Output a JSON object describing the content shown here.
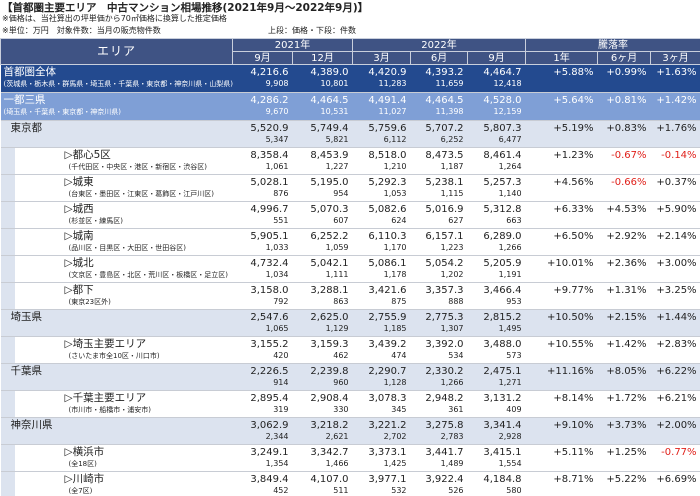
{
  "header": {
    "title": "【首都圏主要エリア　中古マンション相場推移(2021年9月～2022年9月)】",
    "notes": [
      "※価格は、当社算出の坪単価から70㎡価格に換算した推定価格",
      "※単位：万円　対象件数：当月の販売物件数"
    ],
    "layer_note": "上段：価格・下段：件数"
  },
  "table": {
    "columns": {
      "area": "エリア",
      "years": [
        {
          "label": "2021年",
          "months": [
            "9月",
            "12月"
          ]
        },
        {
          "label": "2022年",
          "months": [
            "3月",
            "6月",
            "9月"
          ]
        }
      ],
      "change": {
        "label": "騰落率",
        "periods": [
          "1年",
          "6ヶ月",
          "3ヶ月"
        ]
      }
    },
    "rows": [
      {
        "level": "total",
        "name": "首都圏全体",
        "sub": "(茨城県・栃木県・群馬県・埼玉県・千葉県・東京都・神奈川県・山梨県)",
        "prices": [
          "4,216.6",
          "4,389.0",
          "4,420.9",
          "4,393.2",
          "4,464.7"
        ],
        "counts": [
          "9,908",
          "10,801",
          "11,283",
          "11,659",
          "12,418"
        ],
        "changes": [
          "+5.88%",
          "+0.99%",
          "+1.63%"
        ]
      },
      {
        "level": "region",
        "name": "一都三県",
        "sub": "(埼玉県・千葉県・東京都・神奈川県)",
        "prices": [
          "4,286.2",
          "4,464.5",
          "4,491.4",
          "4,464.5",
          "4,528.0"
        ],
        "counts": [
          "9,670",
          "10,531",
          "11,027",
          "11,398",
          "12,159"
        ],
        "changes": [
          "+5.64%",
          "+0.81%",
          "+1.42%"
        ]
      },
      {
        "level": "pref",
        "name": "東京都",
        "prices": [
          "5,520.9",
          "5,749.4",
          "5,759.6",
          "5,707.2",
          "5,807.3"
        ],
        "counts": [
          "5,347",
          "5,821",
          "6,112",
          "6,252",
          "6,477"
        ],
        "changes": [
          "+5.19%",
          "+0.83%",
          "+1.76%"
        ]
      },
      {
        "level": "sub",
        "name": "▷都心5区",
        "sub": "(千代田区・中央区・港区・新宿区・渋谷区)",
        "prices": [
          "8,358.4",
          "8,453.9",
          "8,518.0",
          "8,473.5",
          "8,461.4"
        ],
        "counts": [
          "1,061",
          "1,227",
          "1,210",
          "1,187",
          "1,264"
        ],
        "changes": [
          "+1.23%",
          "-0.67%",
          "-0.14%"
        ]
      },
      {
        "level": "sub",
        "name": "▷城東",
        "sub": "(台東区・墨田区・江東区・葛飾区・江戸川区)",
        "prices": [
          "5,028.1",
          "5,195.0",
          "5,292.3",
          "5,238.1",
          "5,257.3"
        ],
        "counts": [
          "876",
          "954",
          "1,053",
          "1,115",
          "1,140"
        ],
        "changes": [
          "+4.56%",
          "-0.66%",
          "+0.37%"
        ]
      },
      {
        "level": "sub",
        "name": "▷城西",
        "sub": "(杉並区・練馬区)",
        "prices": [
          "4,996.7",
          "5,070.3",
          "5,082.6",
          "5,016.9",
          "5,312.8"
        ],
        "counts": [
          "551",
          "607",
          "624",
          "627",
          "663"
        ],
        "changes": [
          "+6.33%",
          "+4.53%",
          "+5.90%"
        ]
      },
      {
        "level": "sub",
        "name": "▷城南",
        "sub": "(品川区・目黒区・大田区・世田谷区)",
        "prices": [
          "5,905.1",
          "6,252.2",
          "6,110.3",
          "6,157.1",
          "6,289.0"
        ],
        "counts": [
          "1,033",
          "1,059",
          "1,170",
          "1,223",
          "1,266"
        ],
        "changes": [
          "+6.50%",
          "+2.92%",
          "+2.14%"
        ]
      },
      {
        "level": "sub",
        "name": "▷城北",
        "sub": "(文京区・豊島区・北区・荒川区・板橋区・足立区)",
        "prices": [
          "4,732.4",
          "5,042.1",
          "5,086.1",
          "5,054.2",
          "5,205.9"
        ],
        "counts": [
          "1,034",
          "1,111",
          "1,178",
          "1,202",
          "1,191"
        ],
        "changes": [
          "+10.01%",
          "+2.36%",
          "+3.00%"
        ]
      },
      {
        "level": "sub",
        "name": "▷都下",
        "sub": "(東京23区外)",
        "prices": [
          "3,158.0",
          "3,288.1",
          "3,421.6",
          "3,357.3",
          "3,466.4"
        ],
        "counts": [
          "792",
          "863",
          "875",
          "888",
          "953"
        ],
        "changes": [
          "+9.77%",
          "+1.31%",
          "+3.25%"
        ]
      },
      {
        "level": "pref",
        "name": "埼玉県",
        "prices": [
          "2,547.6",
          "2,625.0",
          "2,755.9",
          "2,775.3",
          "2,815.2"
        ],
        "counts": [
          "1,065",
          "1,129",
          "1,185",
          "1,307",
          "1,495"
        ],
        "changes": [
          "+10.50%",
          "+2.15%",
          "+1.44%"
        ]
      },
      {
        "level": "sub",
        "name": "▷埼玉主要エリア",
        "sub": "(さいたま市全10区・川口市)",
        "prices": [
          "3,155.2",
          "3,159.3",
          "3,439.2",
          "3,392.0",
          "3,488.0"
        ],
        "counts": [
          "420",
          "462",
          "474",
          "534",
          "573"
        ],
        "changes": [
          "+10.55%",
          "+1.42%",
          "+2.83%"
        ]
      },
      {
        "level": "pref",
        "name": "千葉県",
        "prices": [
          "2,226.5",
          "2,239.8",
          "2,290.7",
          "2,330.2",
          "2,475.1"
        ],
        "counts": [
          "914",
          "960",
          "1,128",
          "1,266",
          "1,271"
        ],
        "changes": [
          "+11.16%",
          "+8.05%",
          "+6.22%"
        ]
      },
      {
        "level": "sub",
        "name": "▷千葉主要エリア",
        "sub": "(市川市・船橋市・浦安市)",
        "prices": [
          "2,895.4",
          "2,908.4",
          "3,078.3",
          "2,948.2",
          "3,131.2"
        ],
        "counts": [
          "319",
          "330",
          "345",
          "361",
          "409"
        ],
        "changes": [
          "+8.14%",
          "+1.72%",
          "+6.21%"
        ]
      },
      {
        "level": "pref",
        "name": "神奈川県",
        "prices": [
          "3,062.9",
          "3,218.2",
          "3,221.2",
          "3,275.8",
          "3,341.4"
        ],
        "counts": [
          "2,344",
          "2,621",
          "2,702",
          "2,783",
          "2,928"
        ],
        "changes": [
          "+9.10%",
          "+3.73%",
          "+2.00%"
        ]
      },
      {
        "level": "sub",
        "name": "▷横浜市",
        "sub": "(全18区)",
        "prices": [
          "3,249.1",
          "3,342.7",
          "3,373.1",
          "3,441.7",
          "3,415.1"
        ],
        "counts": [
          "1,354",
          "1,466",
          "1,425",
          "1,489",
          "1,554"
        ],
        "changes": [
          "+5.11%",
          "+1.25%",
          "-0.77%"
        ]
      },
      {
        "level": "sub",
        "name": "▷川崎市",
        "sub": "(全7区)",
        "prices": [
          "3,849.4",
          "4,107.0",
          "3,977.1",
          "3,922.4",
          "4,184.8"
        ],
        "counts": [
          "452",
          "511",
          "532",
          "526",
          "580"
        ],
        "changes": [
          "+8.71%",
          "+5.22%",
          "+6.69%"
        ]
      }
    ]
  }
}
